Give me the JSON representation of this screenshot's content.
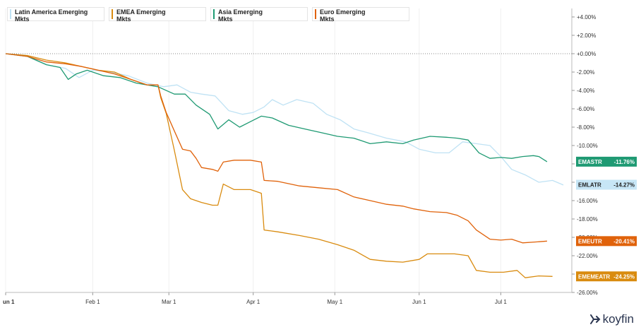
{
  "chart_data": {
    "type": "line",
    "x_labels": [
      "un 1",
      "Feb 1",
      "Mar 1",
      "Apr 1",
      "May 1",
      "Jun 1",
      "Jul 1"
    ],
    "y_ticks": [
      "+4.00%",
      "+2.00%",
      "+0.00%",
      "-2.00%",
      "-4.00%",
      "-6.00%",
      "-8.00%",
      "-10.00%",
      "-12.00%",
      "-14.00%",
      "-16.00%",
      "-18.00%",
      "-20.00%",
      "-22.00%",
      "-24.00%",
      "-26.00%"
    ],
    "ylim": [
      -26,
      4
    ],
    "grid": "vertical",
    "series": [
      {
        "name": "Latin America Emerging Mkts",
        "ticker": "EMLATR",
        "last_label": "-14.27%",
        "color": "#bfe2f4",
        "points": [
          [
            0,
            0
          ],
          [
            8,
            -0.2
          ],
          [
            15,
            -1.2
          ],
          [
            22,
            -1.6
          ],
          [
            27,
            -2.6
          ],
          [
            32,
            -1.8
          ],
          [
            38,
            -2.0
          ],
          [
            45,
            -2.4
          ],
          [
            52,
            -3.2
          ],
          [
            58,
            -3.6
          ],
          [
            63,
            -3.4
          ],
          [
            68,
            -4.2
          ],
          [
            72,
            -4.4
          ],
          [
            77,
            -4.6
          ],
          [
            82,
            -6.2
          ],
          [
            87,
            -6.6
          ],
          [
            91,
            -6.4
          ],
          [
            95,
            -5.8
          ],
          [
            98,
            -5.0
          ],
          [
            102,
            -5.6
          ],
          [
            107,
            -5.0
          ],
          [
            113,
            -5.4
          ],
          [
            118,
            -6.6
          ],
          [
            123,
            -7.2
          ],
          [
            128,
            -8.2
          ],
          [
            133,
            -8.6
          ],
          [
            140,
            -9.2
          ],
          [
            147,
            -9.6
          ],
          [
            152,
            -10.4
          ],
          [
            158,
            -10.8
          ],
          [
            163,
            -10.8
          ],
          [
            168,
            -9.6
          ],
          [
            173,
            -9.8
          ],
          [
            178,
            -10.0
          ],
          [
            182,
            -11.2
          ],
          [
            186,
            -12.6
          ],
          [
            191,
            -13.2
          ],
          [
            196,
            -14.0
          ],
          [
            201,
            -13.8
          ],
          [
            205,
            -14.3
          ]
        ]
      },
      {
        "name": "EMEA Emerging Mkts",
        "ticker": "EMEMEATR",
        "last_label": "-24.25%",
        "color": "#d98b0f",
        "points": [
          [
            0,
            0
          ],
          [
            8,
            -0.2
          ],
          [
            15,
            -0.7
          ],
          [
            22,
            -1.0
          ],
          [
            28,
            -1.4
          ],
          [
            34,
            -1.8
          ],
          [
            40,
            -2.0
          ],
          [
            46,
            -2.8
          ],
          [
            52,
            -3.4
          ],
          [
            56,
            -3.4
          ],
          [
            57,
            -4.8
          ],
          [
            59,
            -6.5
          ],
          [
            62,
            -10.5
          ],
          [
            65,
            -14.8
          ],
          [
            68,
            -15.8
          ],
          [
            72,
            -16.2
          ],
          [
            76,
            -16.5
          ],
          [
            78,
            -16.5
          ],
          [
            80,
            -14.2
          ],
          [
            84,
            -14.8
          ],
          [
            90,
            -14.8
          ],
          [
            94,
            -15.2
          ],
          [
            95,
            -19.2
          ],
          [
            100,
            -19.4
          ],
          [
            108,
            -19.8
          ],
          [
            115,
            -20.2
          ],
          [
            122,
            -20.8
          ],
          [
            128,
            -21.4
          ],
          [
            134,
            -22.4
          ],
          [
            140,
            -22.6
          ],
          [
            146,
            -22.7
          ],
          [
            152,
            -22.4
          ],
          [
            155,
            -21.8
          ],
          [
            160,
            -21.8
          ],
          [
            165,
            -21.8
          ],
          [
            170,
            -22.0
          ],
          [
            173,
            -23.6
          ],
          [
            178,
            -23.8
          ],
          [
            183,
            -23.8
          ],
          [
            188,
            -23.6
          ],
          [
            191,
            -24.4
          ],
          [
            196,
            -24.2
          ],
          [
            201,
            -24.25
          ]
        ]
      },
      {
        "name": "Asia Emerging Mkts",
        "ticker": "EMASTR",
        "last_label": "-11.76%",
        "color": "#1f9a73",
        "points": [
          [
            0,
            0
          ],
          [
            8,
            -0.3
          ],
          [
            15,
            -1.2
          ],
          [
            20,
            -1.5
          ],
          [
            23,
            -2.8
          ],
          [
            26,
            -2.2
          ],
          [
            30,
            -1.8
          ],
          [
            36,
            -2.4
          ],
          [
            42,
            -2.6
          ],
          [
            48,
            -3.2
          ],
          [
            56,
            -3.6
          ],
          [
            62,
            -4.4
          ],
          [
            66,
            -4.4
          ],
          [
            70,
            -5.6
          ],
          [
            75,
            -6.6
          ],
          [
            78,
            -8.2
          ],
          [
            82,
            -7.2
          ],
          [
            86,
            -8.0
          ],
          [
            90,
            -7.4
          ],
          [
            94,
            -6.8
          ],
          [
            98,
            -7.0
          ],
          [
            104,
            -7.8
          ],
          [
            110,
            -8.2
          ],
          [
            116,
            -8.6
          ],
          [
            122,
            -9.0
          ],
          [
            128,
            -9.2
          ],
          [
            134,
            -9.8
          ],
          [
            140,
            -9.6
          ],
          [
            146,
            -9.8
          ],
          [
            150,
            -9.4
          ],
          [
            156,
            -9.0
          ],
          [
            162,
            -9.1
          ],
          [
            166,
            -9.2
          ],
          [
            170,
            -9.4
          ],
          [
            174,
            -10.8
          ],
          [
            178,
            -11.4
          ],
          [
            182,
            -11.3
          ],
          [
            186,
            -11.4
          ],
          [
            190,
            -11.2
          ],
          [
            194,
            -11.1
          ],
          [
            196,
            -11.2
          ],
          [
            199,
            -11.76
          ]
        ]
      },
      {
        "name": "Euro Emerging Mkts",
        "ticker": "EMEUTR",
        "last_label": "-20.41%",
        "color": "#e0620a",
        "points": [
          [
            0,
            0
          ],
          [
            8,
            -0.3
          ],
          [
            15,
            -0.9
          ],
          [
            22,
            -1.1
          ],
          [
            28,
            -1.4
          ],
          [
            34,
            -1.8
          ],
          [
            40,
            -2.2
          ],
          [
            46,
            -2.8
          ],
          [
            52,
            -3.4
          ],
          [
            56,
            -3.4
          ],
          [
            57,
            -4.6
          ],
          [
            59,
            -6.4
          ],
          [
            62,
            -8.4
          ],
          [
            65,
            -10.4
          ],
          [
            68,
            -10.6
          ],
          [
            70,
            -11.4
          ],
          [
            72,
            -12.4
          ],
          [
            76,
            -12.6
          ],
          [
            78,
            -12.8
          ],
          [
            80,
            -11.8
          ],
          [
            84,
            -11.6
          ],
          [
            90,
            -11.6
          ],
          [
            94,
            -11.8
          ],
          [
            95,
            -13.8
          ],
          [
            100,
            -13.9
          ],
          [
            108,
            -14.4
          ],
          [
            115,
            -14.6
          ],
          [
            122,
            -14.8
          ],
          [
            128,
            -15.6
          ],
          [
            134,
            -16.0
          ],
          [
            140,
            -16.4
          ],
          [
            146,
            -16.6
          ],
          [
            150,
            -16.9
          ],
          [
            156,
            -17.2
          ],
          [
            162,
            -17.3
          ],
          [
            166,
            -17.6
          ],
          [
            170,
            -18.2
          ],
          [
            173,
            -19.2
          ],
          [
            178,
            -20.2
          ],
          [
            182,
            -20.3
          ],
          [
            186,
            -20.2
          ],
          [
            190,
            -20.6
          ],
          [
            195,
            -20.5
          ],
          [
            199,
            -20.41
          ]
        ]
      }
    ]
  },
  "badges": [
    {
      "ticker": "EMASTR",
      "value": "-11.76%",
      "value_num": -11.76,
      "bg": "#1f9a73",
      "fg": "#ffffff"
    },
    {
      "ticker": "EMLATR",
      "value": "-14.27%",
      "value_num": -14.27,
      "bg": "#c7e6f6",
      "fg": "#222222"
    },
    {
      "ticker": "EMEUTR",
      "value": "-20.41%",
      "value_num": -20.41,
      "bg": "#e0620a",
      "fg": "#ffffff"
    },
    {
      "ticker": "EMEMEATR",
      "value": "-24.25%",
      "value_num": -24.25,
      "bg": "#d98b0f",
      "fg": "#ffffff"
    }
  ],
  "legend": [
    {
      "line1": "Latin America Emerging",
      "line2": "Mkts",
      "color": "#bfe2f4"
    },
    {
      "line1": "EMEA Emerging",
      "line2": "Mkts",
      "color": "#d98b0f"
    },
    {
      "line1": "Asia Emerging",
      "line2": "Mkts",
      "color": "#1f9a73"
    },
    {
      "line1": "Euro Emerging",
      "line2": "Mkts",
      "color": "#e0620a"
    }
  ],
  "branding": {
    "logo_text": "koyfin"
  }
}
